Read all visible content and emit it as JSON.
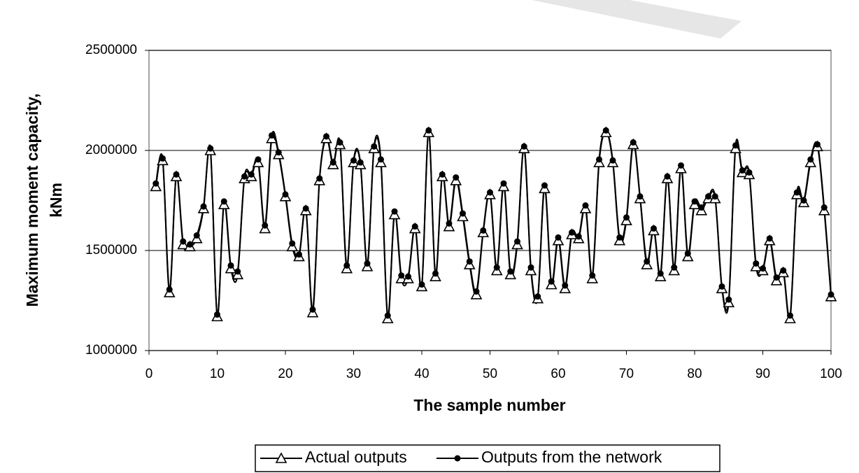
{
  "chart_data": {
    "type": "line",
    "xlabel": "The sample number",
    "ylabel": [
      "Maximum moment capacity,",
      "kNm"
    ],
    "x": [
      1,
      2,
      3,
      4,
      5,
      6,
      7,
      8,
      9,
      10,
      11,
      12,
      13,
      14,
      15,
      16,
      17,
      18,
      19,
      20,
      21,
      22,
      23,
      24,
      25,
      26,
      27,
      28,
      29,
      30,
      31,
      32,
      33,
      34,
      35,
      36,
      37,
      38,
      39,
      40,
      41,
      42,
      43,
      44,
      45,
      46,
      47,
      48,
      49,
      50,
      51,
      52,
      53,
      54,
      55,
      56,
      57,
      58,
      59,
      60,
      61,
      62,
      63,
      64,
      65,
      66,
      67,
      68,
      69,
      70,
      71,
      72,
      73,
      74,
      75,
      76,
      77,
      78,
      79,
      80,
      81,
      82,
      83,
      84,
      85,
      86,
      87,
      88,
      89,
      90,
      91,
      92,
      93,
      94,
      95,
      96,
      97,
      98,
      99,
      100
    ],
    "series": [
      {
        "name": "Actual outputs",
        "color": "#000000",
        "marker": "triangle",
        "values": [
          1820000,
          1950000,
          1290000,
          1870000,
          1530000,
          1520000,
          1560000,
          1710000,
          2000000,
          1170000,
          1730000,
          1410000,
          1380000,
          1860000,
          1870000,
          1940000,
          1610000,
          2060000,
          1980000,
          1770000,
          1520000,
          1470000,
          1700000,
          1190000,
          1850000,
          2060000,
          1930000,
          2030000,
          1410000,
          1940000,
          1930000,
          1420000,
          2010000,
          1940000,
          1160000,
          1680000,
          1360000,
          1360000,
          1610000,
          1320000,
          2090000,
          1370000,
          1870000,
          1620000,
          1850000,
          1670000,
          1430000,
          1280000,
          1590000,
          1780000,
          1400000,
          1820000,
          1380000,
          1530000,
          2010000,
          1400000,
          1260000,
          1810000,
          1330000,
          1550000,
          1310000,
          1580000,
          1560000,
          1710000,
          1360000,
          1940000,
          2090000,
          1940000,
          1550000,
          1650000,
          2030000,
          1760000,
          1430000,
          1600000,
          1370000,
          1860000,
          1400000,
          1910000,
          1470000,
          1730000,
          1700000,
          1760000,
          1760000,
          1310000,
          1240000,
          2010000,
          1890000,
          1880000,
          1420000,
          1400000,
          1550000,
          1350000,
          1390000,
          1160000,
          1780000,
          1740000,
          1940000,
          2020000,
          1700000,
          1270000
        ]
      },
      {
        "name": "Outputs from the network",
        "color": "#000000",
        "marker": "circle",
        "values": [
          1835000,
          1960000,
          1305000,
          1880000,
          1545000,
          1530000,
          1575000,
          1720000,
          2010000,
          1180000,
          1745000,
          1425000,
          1395000,
          1870000,
          1880000,
          1955000,
          1625000,
          2075000,
          1990000,
          1780000,
          1535000,
          1480000,
          1710000,
          1205000,
          1860000,
          2070000,
          1940000,
          2040000,
          1425000,
          1950000,
          1940000,
          1435000,
          2020000,
          1955000,
          1175000,
          1695000,
          1375000,
          1370000,
          1620000,
          1330000,
          2100000,
          1385000,
          1880000,
          1635000,
          1865000,
          1685000,
          1445000,
          1295000,
          1600000,
          1790000,
          1415000,
          1835000,
          1395000,
          1545000,
          2020000,
          1415000,
          1270000,
          1825000,
          1345000,
          1565000,
          1325000,
          1590000,
          1570000,
          1725000,
          1375000,
          1955000,
          2100000,
          1950000,
          1565000,
          1665000,
          2040000,
          1770000,
          1445000,
          1610000,
          1385000,
          1870000,
          1415000,
          1925000,
          1485000,
          1745000,
          1715000,
          1770000,
          1770000,
          1320000,
          1255000,
          2025000,
          1900000,
          1890000,
          1435000,
          1410000,
          1560000,
          1365000,
          1400000,
          1175000,
          1790000,
          1750000,
          1955000,
          2030000,
          1715000,
          1280000
        ]
      }
    ],
    "xlim": [
      0,
      100
    ],
    "xticks": [
      0,
      10,
      20,
      30,
      40,
      50,
      60,
      70,
      80,
      90,
      100
    ],
    "ylim": [
      1000000,
      2500000
    ],
    "yticks": [
      1000000,
      1500000,
      2000000,
      2500000
    ],
    "grid": true,
    "legend": "bottom"
  }
}
